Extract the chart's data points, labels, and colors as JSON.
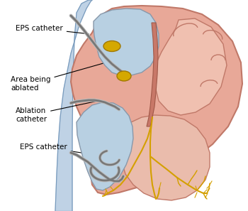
{
  "bg_color": "#ffffff",
  "heart_outer_color": "#e8a898",
  "heart_outer_stroke": "#c07868",
  "heart_inner_left_color": "#b8d0e2",
  "heart_inner_right_color": "#f0c0b0",
  "electrical_color": "#d4a000",
  "catheter_color": "#888888",
  "ablation_spot_color": "#d4a800",
  "vein_color": "#aac4dd",
  "annotation_color": "#000000",
  "label_eps_top": "EPS catheter",
  "label_area": "Area being\nablated",
  "label_ablation": "Ablation\ncatheter",
  "label_eps_bottom": "EPS catheter",
  "figsize": [
    3.5,
    2.97
  ],
  "dpi": 100
}
